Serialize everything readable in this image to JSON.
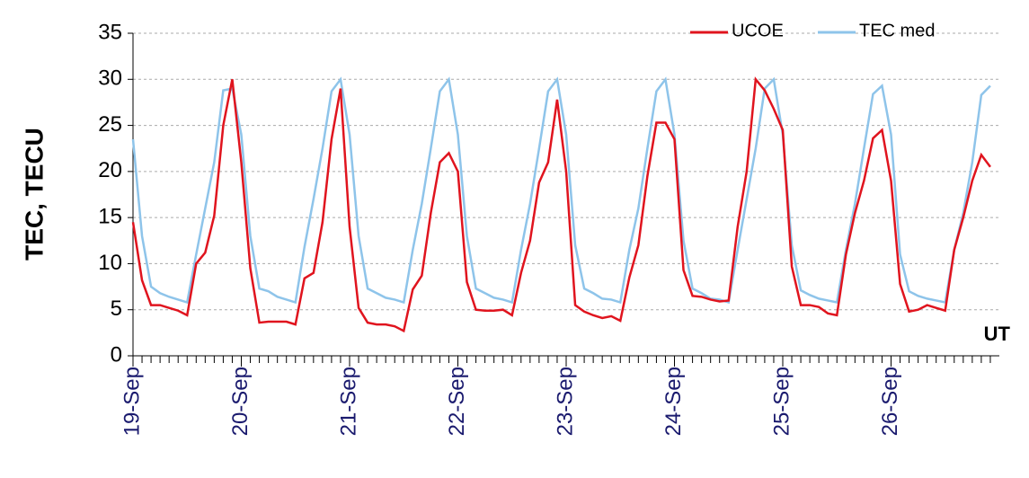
{
  "chart_data": {
    "type": "line",
    "y_label": "TEC, TECU",
    "x_label": "UT",
    "categories": [
      "19-Sep",
      null,
      null,
      null,
      null,
      null,
      null,
      null,
      null,
      null,
      null,
      null,
      "20-Sep",
      null,
      null,
      null,
      null,
      null,
      null,
      null,
      null,
      null,
      null,
      null,
      "21-Sep",
      null,
      null,
      null,
      null,
      null,
      null,
      null,
      null,
      null,
      null,
      null,
      "22-Sep",
      null,
      null,
      null,
      null,
      null,
      null,
      null,
      null,
      null,
      null,
      null,
      "23-Sep",
      null,
      null,
      null,
      null,
      null,
      null,
      null,
      null,
      null,
      null,
      null,
      "24-Sep",
      null,
      null,
      null,
      null,
      null,
      null,
      null,
      null,
      null,
      null,
      null,
      "25-Sep",
      null,
      null,
      null,
      null,
      null,
      null,
      null,
      null,
      null,
      null,
      null,
      "26-Sep",
      null,
      null,
      null,
      null,
      null,
      null,
      null,
      null,
      null,
      null,
      null
    ],
    "series": [
      {
        "name": "UCOE",
        "color": "#e0141e",
        "values": [
          14.5,
          8.2,
          5.5,
          5.5,
          5.2,
          4.9,
          4.4,
          10,
          11.2,
          15.2,
          25,
          30,
          21,
          9.5,
          3.6,
          3.7,
          3.7,
          3.7,
          3.4,
          8.4,
          9,
          14.5,
          23.5,
          29,
          14,
          5.2,
          3.6,
          3.4,
          3.4,
          3.2,
          2.7,
          7.2,
          8.7,
          15.5,
          21,
          22,
          20,
          8,
          5,
          4.9,
          4.9,
          5,
          4.4,
          9,
          12.5,
          18.8,
          21,
          27.8,
          20,
          5.5,
          4.8,
          4.4,
          4.1,
          4.3,
          3.8,
          8.5,
          12,
          19.5,
          25.3,
          25.3,
          23.5,
          9.3,
          6.5,
          6.4,
          6.1,
          5.9,
          6,
          14,
          20,
          30,
          28.8,
          26.8,
          24.5,
          9.7,
          5.5,
          5.5,
          5.3,
          4.6,
          4.4,
          11,
          15.5,
          19,
          23.6,
          24.5,
          19,
          7.8,
          4.8,
          5,
          5.5,
          5.2,
          4.9,
          11.5,
          15,
          19,
          21.8,
          20.5
        ]
      },
      {
        "name": "TEC med",
        "color": "#8ec4ea",
        "values": [
          23.5,
          13,
          7.5,
          6.8,
          6.4,
          6.1,
          5.8,
          11,
          16,
          21,
          28.8,
          29,
          24,
          13,
          7.3,
          7,
          6.4,
          6.1,
          5.8,
          11.8,
          17,
          22.5,
          28.7,
          30,
          24,
          13,
          7.3,
          6.8,
          6.3,
          6.1,
          5.8,
          11.5,
          16.5,
          22.5,
          28.7,
          30,
          24,
          13,
          7.3,
          6.8,
          6.3,
          6.1,
          5.8,
          11.5,
          16.5,
          22.5,
          28.7,
          30,
          24,
          12,
          7.3,
          6.8,
          6.2,
          6.1,
          5.8,
          11.5,
          16,
          22.5,
          28.7,
          30,
          24,
          12.5,
          7.3,
          6.8,
          6.2,
          6.1,
          5.8,
          11.5,
          17,
          22.5,
          29,
          30,
          24,
          12,
          7.1,
          6.6,
          6.2,
          6,
          5.8,
          11.5,
          16.5,
          22.5,
          28.4,
          29.3,
          24,
          11,
          7,
          6.5,
          6.2,
          6,
          5.8,
          11.5,
          15.5,
          21,
          28.3,
          29.3
        ]
      }
    ],
    "ylim": [
      0,
      35
    ],
    "yticks": [
      0,
      5,
      10,
      15,
      20,
      25,
      30,
      35
    ],
    "grid": true,
    "legend": "top-right"
  }
}
